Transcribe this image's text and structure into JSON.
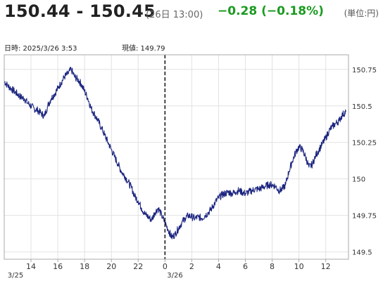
{
  "header": {
    "price_range": "150.44 - 150.45",
    "time": "(26日 13:00)",
    "change": "−0.28 (−0.18%)",
    "unit": "(単位:円)"
  },
  "info": {
    "datetime": "日時: 2025/3/26  3:53",
    "current_price": "現値: 149.79"
  },
  "colors": {
    "line": "#1c2580",
    "change": "#1a9a20",
    "grid": "#e2e2e2",
    "frame": "#a9a9a9",
    "cursor": "#111111"
  },
  "chart_data": {
    "type": "line",
    "x_unit": "hours since 3/25 12:00",
    "x_ticks": [
      {
        "x": 2,
        "label": "14"
      },
      {
        "x": 4,
        "label": "16"
      },
      {
        "x": 6,
        "label": "18"
      },
      {
        "x": 8,
        "label": "20"
      },
      {
        "x": 10,
        "label": "22"
      },
      {
        "x": 12,
        "label": "0"
      },
      {
        "x": 14,
        "label": "2"
      },
      {
        "x": 16,
        "label": "4"
      },
      {
        "x": 18,
        "label": "6"
      },
      {
        "x": 20,
        "label": "8"
      },
      {
        "x": 22,
        "label": "10"
      },
      {
        "x": 24,
        "label": "12"
      }
    ],
    "date_labels": [
      {
        "x": 0.2,
        "label": "3/25"
      },
      {
        "x": 12.1,
        "label": "3/26"
      }
    ],
    "y_ticks": [
      {
        "y": 149.5,
        "label": "149.5"
      },
      {
        "y": 149.75,
        "label": "149.75"
      },
      {
        "y": 150,
        "label": "150"
      },
      {
        "y": 150.25,
        "label": "150.25"
      },
      {
        "y": 150.5,
        "label": "150.5"
      },
      {
        "y": 150.75,
        "label": "150.75"
      }
    ],
    "xlim": [
      0,
      25.7
    ],
    "ylim": [
      149.45,
      150.85
    ],
    "cursor_x": 12.0,
    "grid": true,
    "series": [
      {
        "points": [
          [
            0.0,
            150.67
          ],
          [
            0.25,
            150.64
          ],
          [
            0.5,
            150.62
          ],
          [
            0.75,
            150.6
          ],
          [
            1.0,
            150.58
          ],
          [
            1.25,
            150.56
          ],
          [
            1.5,
            150.55
          ],
          [
            1.75,
            150.52
          ],
          [
            2.0,
            150.5
          ],
          [
            2.25,
            150.48
          ],
          [
            2.5,
            150.47
          ],
          [
            2.75,
            150.45
          ],
          [
            3.0,
            150.43
          ],
          [
            3.25,
            150.5
          ],
          [
            3.5,
            150.55
          ],
          [
            3.75,
            150.58
          ],
          [
            4.0,
            150.62
          ],
          [
            4.25,
            150.66
          ],
          [
            4.5,
            150.7
          ],
          [
            4.75,
            150.72
          ],
          [
            5.0,
            150.75
          ],
          [
            5.25,
            150.7
          ],
          [
            5.5,
            150.68
          ],
          [
            5.75,
            150.65
          ],
          [
            6.0,
            150.6
          ],
          [
            6.25,
            150.55
          ],
          [
            6.5,
            150.48
          ],
          [
            6.75,
            150.44
          ],
          [
            7.0,
            150.4
          ],
          [
            7.25,
            150.35
          ],
          [
            7.5,
            150.3
          ],
          [
            7.75,
            150.25
          ],
          [
            8.0,
            150.2
          ],
          [
            8.25,
            150.15
          ],
          [
            8.5,
            150.1
          ],
          [
            8.75,
            150.05
          ],
          [
            9.0,
            150.02
          ],
          [
            9.25,
            149.98
          ],
          [
            9.5,
            149.94
          ],
          [
            9.75,
            149.88
          ],
          [
            10.0,
            149.85
          ],
          [
            10.25,
            149.8
          ],
          [
            10.5,
            149.76
          ],
          [
            10.75,
            149.74
          ],
          [
            11.0,
            149.72
          ],
          [
            11.25,
            149.77
          ],
          [
            11.5,
            149.8
          ],
          [
            11.75,
            149.75
          ],
          [
            12.0,
            149.7
          ],
          [
            12.25,
            149.65
          ],
          [
            12.5,
            149.6
          ],
          [
            12.75,
            149.62
          ],
          [
            13.0,
            149.66
          ],
          [
            13.25,
            149.7
          ],
          [
            13.5,
            149.73
          ],
          [
            13.75,
            149.75
          ],
          [
            14.0,
            149.74
          ],
          [
            14.25,
            149.73
          ],
          [
            14.5,
            149.74
          ],
          [
            14.75,
            149.73
          ],
          [
            15.0,
            149.75
          ],
          [
            15.25,
            149.77
          ],
          [
            15.5,
            149.8
          ],
          [
            15.75,
            149.84
          ],
          [
            16.0,
            149.87
          ],
          [
            16.25,
            149.89
          ],
          [
            16.5,
            149.9
          ],
          [
            16.75,
            149.91
          ],
          [
            17.0,
            149.9
          ],
          [
            17.25,
            149.91
          ],
          [
            17.5,
            149.92
          ],
          [
            17.75,
            149.91
          ],
          [
            18.0,
            149.9
          ],
          [
            18.25,
            149.91
          ],
          [
            18.5,
            149.92
          ],
          [
            18.75,
            149.93
          ],
          [
            19.0,
            149.93
          ],
          [
            19.25,
            149.94
          ],
          [
            19.5,
            149.95
          ],
          [
            19.75,
            149.96
          ],
          [
            20.0,
            149.96
          ],
          [
            20.25,
            149.95
          ],
          [
            20.5,
            149.92
          ],
          [
            20.75,
            149.93
          ],
          [
            21.0,
            149.96
          ],
          [
            21.25,
            150.05
          ],
          [
            21.5,
            150.12
          ],
          [
            21.75,
            150.18
          ],
          [
            22.0,
            150.22
          ],
          [
            22.25,
            150.2
          ],
          [
            22.5,
            150.15
          ],
          [
            22.75,
            150.08
          ],
          [
            23.0,
            150.1
          ],
          [
            23.25,
            150.16
          ],
          [
            23.5,
            150.2
          ],
          [
            23.75,
            150.24
          ],
          [
            24.0,
            150.28
          ],
          [
            24.25,
            150.33
          ],
          [
            24.5,
            150.36
          ],
          [
            24.75,
            150.38
          ],
          [
            25.0,
            150.4
          ],
          [
            25.25,
            150.44
          ],
          [
            25.5,
            150.46
          ]
        ]
      }
    ]
  }
}
